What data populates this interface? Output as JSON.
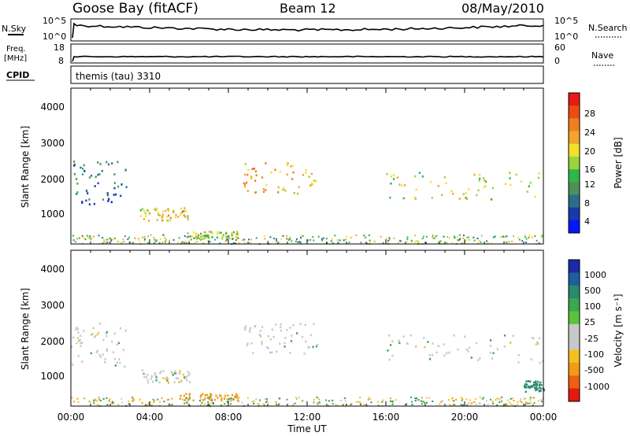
{
  "header": {
    "station": "Goose Bay (fitACF)",
    "beam": "Beam 12",
    "date": "08/May/2010"
  },
  "summary_panels": {
    "nsky_label": "N.Sky",
    "nsearch_label": "N.Search",
    "noise_ticks": [
      "10^5",
      "10^0"
    ],
    "freq_label_line1": "Freq.",
    "freq_label_line2": "[MHz]",
    "freq_ticks": [
      "18",
      "8"
    ],
    "nave_label": "Nave",
    "nave_ticks": [
      "60",
      "0"
    ],
    "cpid_label": "CPID",
    "cpid_value": "themis (tau) 3310"
  },
  "axes": {
    "ylabel": "Slant Range [km]",
    "yticks": [
      "4000",
      "3000",
      "2000",
      "1000"
    ],
    "xticks": [
      "00:00",
      "04:00",
      "08:00",
      "12:00",
      "16:00",
      "20:00",
      "00:00"
    ],
    "xlabel": "Time UT"
  },
  "colorbars": {
    "power": {
      "label": "Power [dB]",
      "ticks": [
        "28",
        "24",
        "20",
        "16",
        "12",
        "8",
        "4"
      ],
      "colors": [
        "#0018ff",
        "#173aa8",
        "#2a6e8a",
        "#4f8f5a",
        "#2fb84a",
        "#9ad43a",
        "#f3e02a",
        "#f2a52a",
        "#f07e1e",
        "#ee4a14",
        "#e71b14"
      ]
    },
    "velocity": {
      "label": "Velocity [m s⁻¹]",
      "ticks": [
        "1000",
        "500",
        "100",
        "25",
        "-25",
        "-100",
        "-500",
        "-1000"
      ],
      "colors": [
        "#1a2aa8",
        "#1d5fa0",
        "#2a8a6a",
        "#3aa850",
        "#5cc23a",
        "#c8c8c8",
        "#c8c8c8",
        "#f3c020",
        "#f39a18",
        "#ee6010",
        "#e21a10"
      ]
    }
  },
  "chart_data": [
    {
      "type": "line",
      "title": "Goose Bay (fitACF)",
      "series": [
        {
          "name": "N.Sky",
          "description_values": "log noise ~10^4, nearly constant"
        },
        {
          "name": "N.Search",
          "description_values": "not plotted"
        }
      ],
      "x": [
        "00:00",
        "04:00",
        "08:00",
        "12:00",
        "16:00",
        "20:00",
        "00:00"
      ]
    },
    {
      "type": "line",
      "series": [
        {
          "name": "Freq.",
          "values_mhz_approx": [
            10.5,
            10.5,
            10.5,
            10.5,
            10.5,
            10.5,
            10.5
          ]
        },
        {
          "name": "Nave",
          "values_approx": [
            20,
            20,
            20,
            20,
            20,
            20,
            20
          ]
        }
      ],
      "x": [
        "00:00",
        "04:00",
        "08:00",
        "12:00",
        "16:00",
        "20:00",
        "00:00"
      ]
    },
    {
      "type": "heatmap",
      "xlabel": "Time UT",
      "ylabel": "Slant Range [km]",
      "xlim_hours": [
        0,
        24
      ],
      "ylim_km": [
        180,
        4500
      ],
      "colorbar": "Power [dB]",
      "features": [
        {
          "t_hours": [
            0.0,
            2.8
          ],
          "range_km": [
            1300,
            2500
          ],
          "power_db": 8
        },
        {
          "t_hours": [
            3.5,
            6.0
          ],
          "range_km": [
            850,
            1200
          ],
          "power_db": 18
        },
        {
          "t_hours": [
            5.5,
            8.5
          ],
          "range_km": [
            350,
            550
          ],
          "power_db": 16
        },
        {
          "t_hours": [
            8.7,
            12.5
          ],
          "range_km": [
            1600,
            2500
          ],
          "power_db": 20
        },
        {
          "t_hours": [
            16.0,
            24.0
          ],
          "range_km": [
            1400,
            2200
          ],
          "power_db": 16
        }
      ]
    },
    {
      "type": "heatmap",
      "xlabel": "Time UT",
      "ylabel": "Slant Range [km]",
      "xlim_hours": [
        0,
        24
      ],
      "ylim_km": [
        180,
        4500
      ],
      "colorbar": "Velocity [m s-1]",
      "features": [
        {
          "t_hours": [
            0.0,
            2.8
          ],
          "range_km": [
            1300,
            2500
          ],
          "velocity": 0
        },
        {
          "t_hours": [
            3.5,
            6.0
          ],
          "range_km": [
            850,
            1200
          ],
          "velocity": 0
        },
        {
          "t_hours": [
            5.5,
            8.5
          ],
          "range_km": [
            350,
            550
          ],
          "velocity": -300
        },
        {
          "t_hours": [
            8.7,
            12.5
          ],
          "range_km": [
            1600,
            2500
          ],
          "velocity": 0
        },
        {
          "t_hours": [
            16.0,
            24.0
          ],
          "range_km": [
            1400,
            2200
          ],
          "velocity": 0
        },
        {
          "t_hours": [
            23.0,
            24.0
          ],
          "range_km": [
            600,
            900
          ],
          "velocity": 150
        }
      ]
    }
  ]
}
